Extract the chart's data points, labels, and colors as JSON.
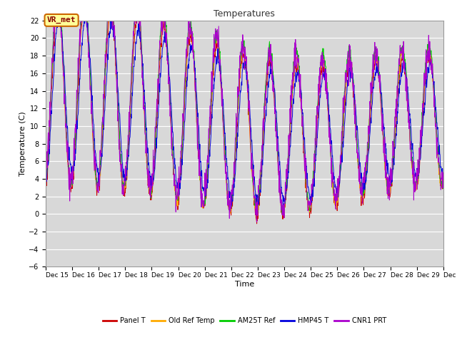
{
  "title": "Temperatures",
  "xlabel": "Time",
  "ylabel": "Temperature (C)",
  "xlim": [
    15,
    30
  ],
  "ylim": [
    -6,
    22
  ],
  "yticks": [
    -6,
    -4,
    -2,
    0,
    2,
    4,
    6,
    8,
    10,
    12,
    14,
    16,
    18,
    20,
    22
  ],
  "xtick_positions": [
    15,
    16,
    17,
    18,
    19,
    20,
    21,
    22,
    23,
    24,
    25,
    26,
    27,
    28,
    29,
    30
  ],
  "xtick_labels": [
    "Dec 15",
    "Dec 16",
    "Dec 17",
    "Dec 18",
    "Dec 19",
    "Dec 20",
    "Dec 21",
    "Dec 22",
    "Dec 23",
    "Dec 24",
    "Dec 25",
    "Dec 26",
    "Dec 27",
    "Dec 28",
    "Dec 29",
    "Dec 30"
  ],
  "fig_bg_color": "#ffffff",
  "plot_bg_color": "#d8d8d8",
  "grid_color": "#ffffff",
  "series_colors": {
    "Panel T": "#cc0000",
    "Old Ref Temp": "#ffaa00",
    "AM25T Ref": "#00cc00",
    "HMP45 T": "#0000dd",
    "CNR1 PRT": "#aa00cc"
  },
  "annotation_text": "VR_met",
  "annotation_bg": "#ffff99",
  "annotation_border": "#cc6600",
  "annotation_text_color": "#880000"
}
